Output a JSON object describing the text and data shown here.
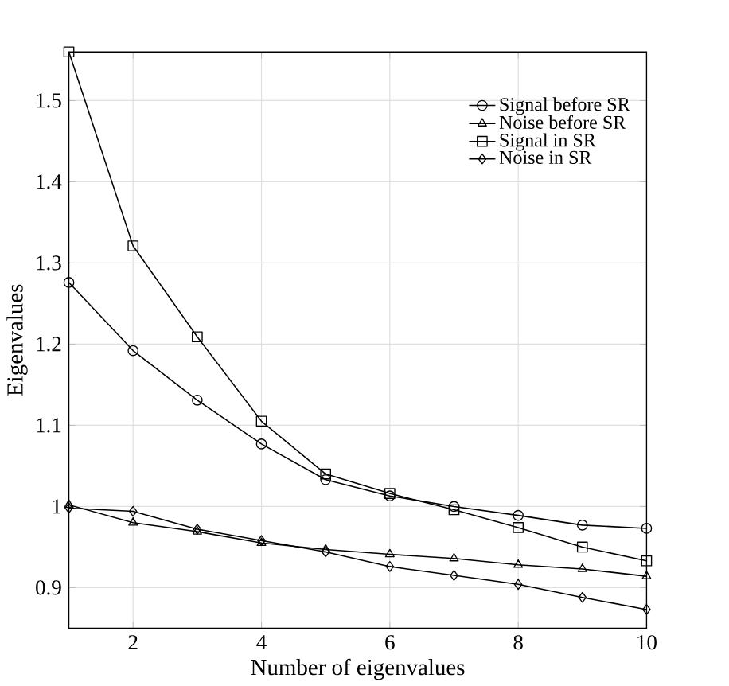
{
  "chart_data": {
    "type": "line",
    "xlabel": "Number of eigenvalues",
    "ylabel": "Eigenvalues",
    "x": [
      1,
      2,
      3,
      4,
      5,
      6,
      7,
      8,
      9,
      10
    ],
    "series": [
      {
        "name": "Signal before SR",
        "color": "#000000",
        "marker": "circle",
        "values": [
          1.276,
          1.192,
          1.131,
          1.077,
          1.033,
          1.013,
          1.0,
          0.989,
          0.977,
          0.973
        ]
      },
      {
        "name": "Noise before SR",
        "color": "#000000",
        "marker": "triangle",
        "values": [
          1.002,
          0.98,
          0.969,
          0.955,
          0.947,
          0.941,
          0.936,
          0.928,
          0.923,
          0.914
        ]
      },
      {
        "name": "Signal in SR",
        "color": "#000000",
        "marker": "square",
        "values": [
          1.56,
          1.321,
          1.209,
          1.105,
          1.04,
          1.016,
          0.996,
          0.974,
          0.95,
          0.933
        ]
      },
      {
        "name": "Noise in SR",
        "color": "#000000",
        "marker": "diamond",
        "values": [
          0.998,
          0.994,
          0.972,
          0.958,
          0.944,
          0.926,
          0.915,
          0.904,
          0.888,
          0.873
        ]
      }
    ],
    "xlim": [
      1,
      10
    ],
    "xticks": [
      2,
      4,
      6,
      8,
      10
    ],
    "ylim": [
      0.85,
      1.56
    ],
    "yticks": [
      0.9,
      1,
      1.1,
      1.2,
      1.3,
      1.4,
      1.5
    ],
    "grid": true,
    "legend": "top right",
    "line_style": "solid"
  }
}
